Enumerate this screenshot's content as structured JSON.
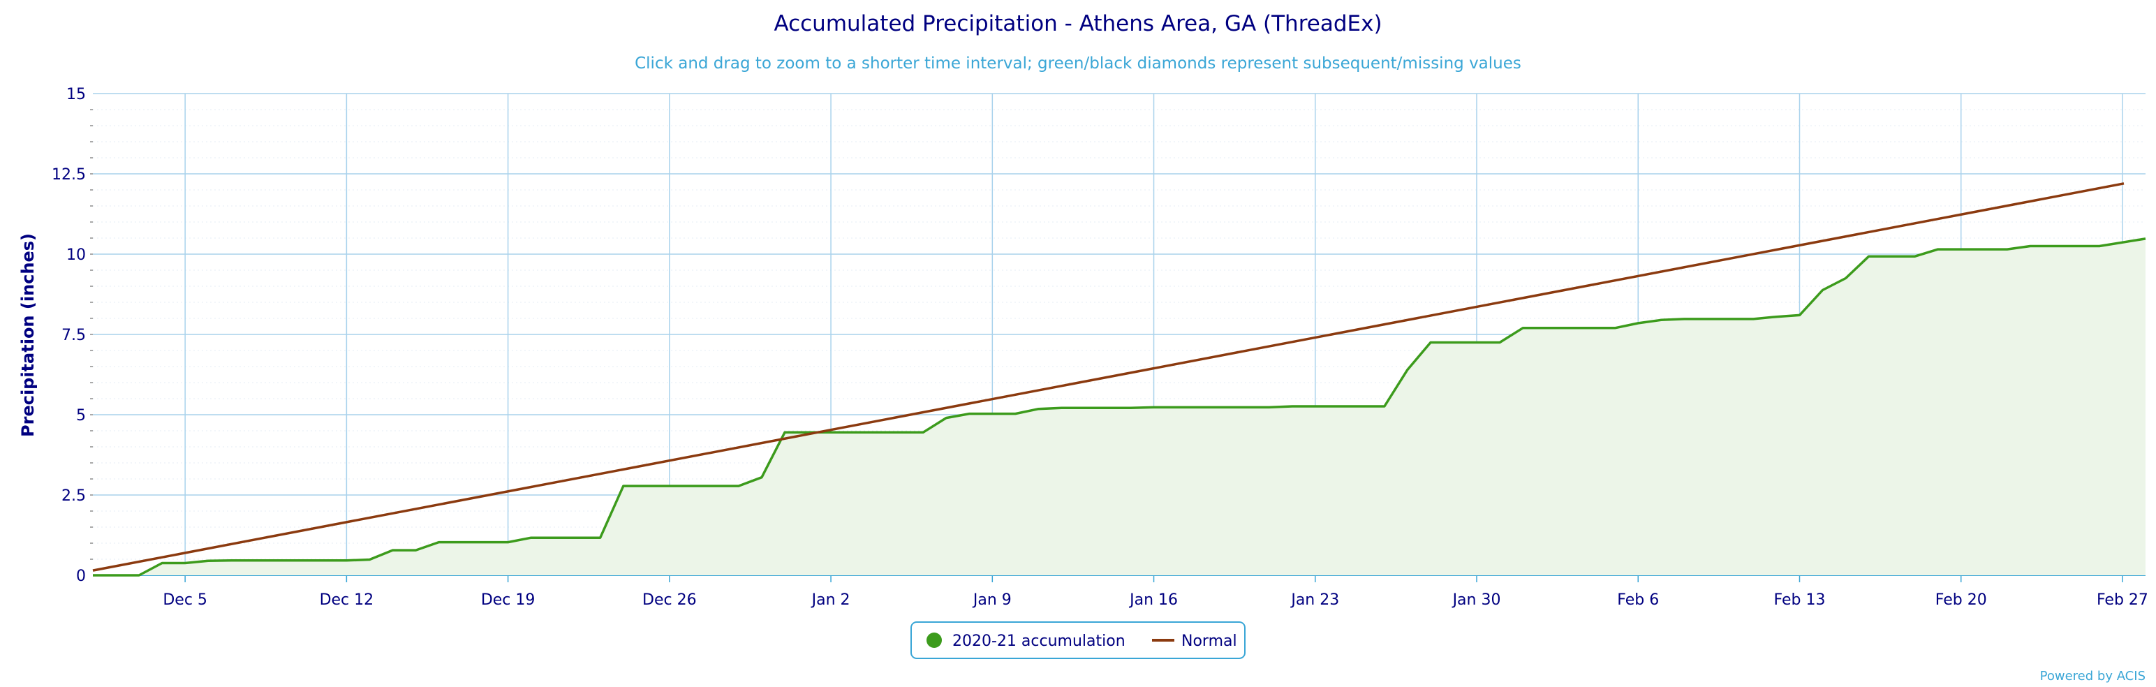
{
  "title": "Accumulated Precipitation - Athens Area, GA (ThreadEx)",
  "subtitle": "Click and drag to zoom to a shorter time interval; green/black diamonds represent subsequent/missing values",
  "credits": "Powered by ACIS",
  "colors": {
    "accum": "#3c9b1c",
    "accum_fill": "#ecf5e8",
    "normal": "#8b3a0f",
    "grid": "#a9d2ec",
    "baseline": "#3aa6d6",
    "text": "#000080"
  },
  "chart_data": {
    "type": "line",
    "title": "Accumulated Precipitation - Athens Area, GA (ThreadEx)",
    "ylabel": "Precipitation (inches)",
    "ylim": [
      0,
      15
    ],
    "yticks": [
      0,
      2.5,
      5,
      7.5,
      10,
      12.5,
      15
    ],
    "ytick_labels": [
      "0",
      "2.5",
      "5",
      "7.5",
      "10",
      "12.5",
      "15"
    ],
    "xlim": [
      0,
      87
    ],
    "xticks": [
      {
        "day": 4,
        "label": "Dec 5"
      },
      {
        "day": 11,
        "label": "Dec 12"
      },
      {
        "day": 18,
        "label": "Dec 19"
      },
      {
        "day": 25,
        "label": "Dec 26"
      },
      {
        "day": 32,
        "label": "Jan 2"
      },
      {
        "day": 39,
        "label": "Jan 9"
      },
      {
        "day": 46,
        "label": "Jan 16"
      },
      {
        "day": 53,
        "label": "Jan 23"
      },
      {
        "day": 60,
        "label": "Jan 30"
      },
      {
        "day": 67,
        "label": "Feb 6"
      },
      {
        "day": 74,
        "label": "Feb 13"
      },
      {
        "day": 81,
        "label": "Feb 20"
      },
      {
        "day": 88,
        "label": "Feb 27"
      }
    ],
    "grid": true,
    "legend_position": "bottom-center",
    "series": [
      {
        "name": "2020-21 accumulation",
        "kind": "area",
        "x": [
          0,
          1,
          2,
          3,
          4,
          5,
          6,
          7,
          8,
          9,
          10,
          11,
          12,
          13,
          14,
          15,
          16,
          17,
          18,
          19,
          20,
          21,
          22,
          23,
          24,
          25,
          26,
          27,
          28,
          29,
          30,
          31,
          32,
          33,
          34,
          35,
          36,
          37,
          38,
          39,
          40,
          41,
          42,
          43,
          44,
          45,
          46,
          47,
          48,
          49,
          50,
          51,
          52,
          53,
          54,
          55,
          56,
          57,
          58,
          59,
          60,
          61,
          62,
          63,
          64,
          65,
          66,
          67,
          68,
          69,
          70,
          71,
          72,
          73,
          74,
          75,
          76,
          77,
          78,
          79,
          80,
          81,
          82,
          83,
          84,
          85,
          86,
          87
        ],
        "y": [
          0,
          0,
          0,
          0.38,
          0.38,
          0.45,
          0.46,
          0.46,
          0.46,
          0.46,
          0.46,
          0.46,
          0.49,
          0.78,
          0.78,
          1.03,
          1.03,
          1.03,
          1.03,
          1.17,
          1.17,
          1.17,
          1.17,
          2.78,
          2.78,
          2.78,
          2.78,
          2.78,
          2.78,
          3.05,
          4.45,
          4.45,
          4.45,
          4.45,
          4.45,
          4.45,
          4.45,
          4.9,
          5.03,
          5.03,
          5.03,
          5.18,
          5.21,
          5.21,
          5.21,
          5.21,
          5.23,
          5.23,
          5.23,
          5.23,
          5.23,
          5.23,
          5.26,
          5.26,
          5.26,
          5.26,
          5.26,
          6.4,
          7.25,
          7.25,
          7.25,
          7.25,
          7.7,
          7.7,
          7.7,
          7.7,
          7.7,
          7.85,
          7.95,
          7.98,
          7.98,
          7.98,
          7.98,
          8.05,
          8.1,
          8.88,
          9.25,
          9.93,
          9.93,
          9.93,
          10.15,
          10.15,
          10.15,
          10.15,
          10.25,
          10.25,
          10.25,
          10.25
        ]
      },
      {
        "name": "Normal",
        "kind": "line",
        "x": [
          0,
          88
        ],
        "y": [
          0.15,
          12.2
        ]
      }
    ],
    "extra_points": [
      {
        "x": 89,
        "y": 10.48
      }
    ]
  },
  "legend": {
    "items": [
      {
        "label": "2020-21 accumulation",
        "symbol": "circle"
      },
      {
        "label": "Normal",
        "symbol": "line"
      }
    ]
  }
}
